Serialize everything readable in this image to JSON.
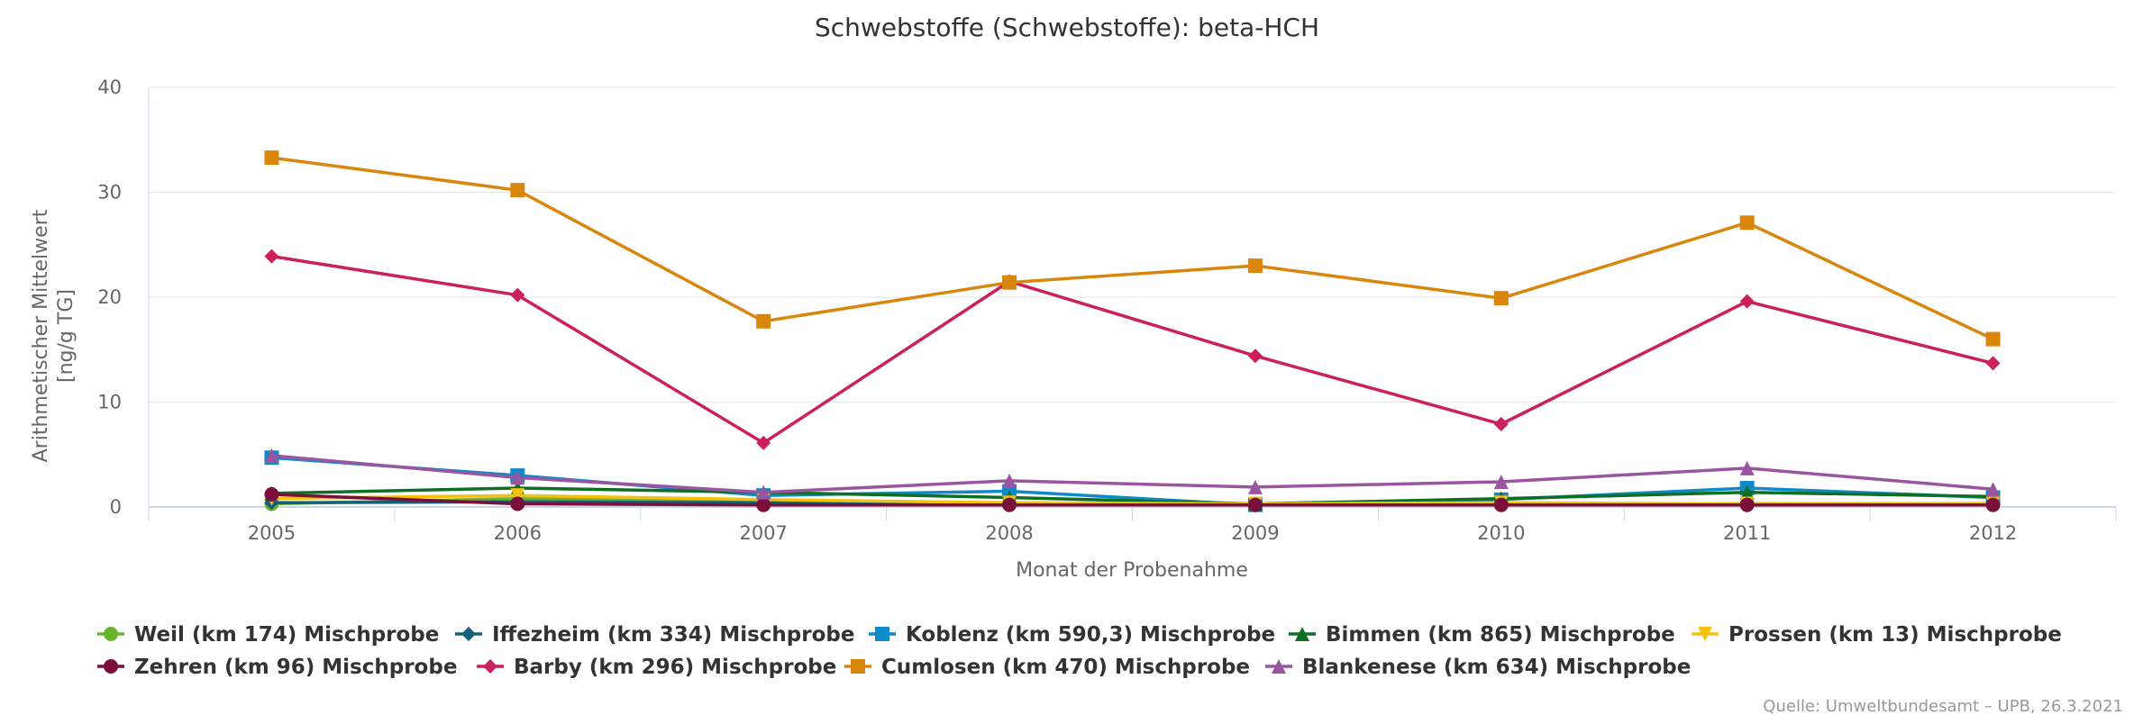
{
  "chart_data": {
    "type": "line",
    "title": "Schwebstoffe (Schwebstoffe): beta-HCH",
    "xlabel": "Monat der Probenahme",
    "ylabel_lines": [
      "Arithmetischer Mittelwert",
      "[ng/g TG]"
    ],
    "categories": [
      "2005",
      "2006",
      "2007",
      "2008",
      "2009",
      "2010",
      "2011",
      "2012"
    ],
    "ylim": [
      0,
      40
    ],
    "yticks": [
      "0",
      "10",
      "20",
      "30",
      "40"
    ],
    "grid": true,
    "legend_position": "bottom",
    "series": [
      {
        "name": "Weil (km 174) Mischprobe",
        "color": "#6ab42d",
        "marker": "circle",
        "values": [
          0.3,
          0.8,
          0.5,
          0.4,
          0.2,
          0.3,
          0.3,
          0.3
        ]
      },
      {
        "name": "Iffezheim (km 334) Mischprobe",
        "color": "#13607c",
        "marker": "diamond",
        "values": [
          0.4,
          0.5,
          0.4,
          0.3,
          0.2,
          0.3,
          0.3,
          0.3
        ]
      },
      {
        "name": "Koblenz (km 590,3) Mischprobe",
        "color": "#0f8ac8",
        "marker": "square",
        "values": [
          4.7,
          3.0,
          1.1,
          1.5,
          0.2,
          0.7,
          1.8,
          0.9
        ]
      },
      {
        "name": "Bimmen (km 865) Mischprobe",
        "color": "#0d6e24",
        "marker": "triangle",
        "values": [
          1.3,
          1.8,
          1.4,
          0.9,
          0.3,
          0.8,
          1.4,
          1.0
        ]
      },
      {
        "name": "Prossen (km 13) Mischprobe",
        "color": "#f6c10e",
        "marker": "triangle-down",
        "values": [
          0.8,
          1.1,
          0.7,
          0.4,
          0.3,
          0.4,
          0.3,
          0.3
        ]
      },
      {
        "name": "Zehren (km 96) Mischprobe",
        "color": "#7b0f3c",
        "marker": "circle",
        "values": [
          1.2,
          0.3,
          0.2,
          0.2,
          0.2,
          0.2,
          0.2,
          0.2
        ]
      },
      {
        "name": "Barby (km 296) Mischprobe",
        "color": "#cc1f5d",
        "marker": "diamond",
        "values": [
          23.9,
          20.2,
          6.1,
          21.5,
          14.4,
          7.9,
          19.6,
          13.7
        ]
      },
      {
        "name": "Cumlosen (km 470) Mischprobe",
        "color": "#d9860c",
        "marker": "square",
        "values": [
          33.3,
          30.2,
          17.7,
          21.4,
          23.0,
          19.9,
          27.1,
          16.0
        ]
      },
      {
        "name": "Blankenese (km 634) Mischprobe",
        "color": "#9a55a0",
        "marker": "triangle",
        "values": [
          4.9,
          2.8,
          1.4,
          2.5,
          1.9,
          2.4,
          3.7,
          1.7
        ]
      }
    ],
    "credits": "Quelle: Umweltbundesamt – UPB, 26.3.2021"
  }
}
